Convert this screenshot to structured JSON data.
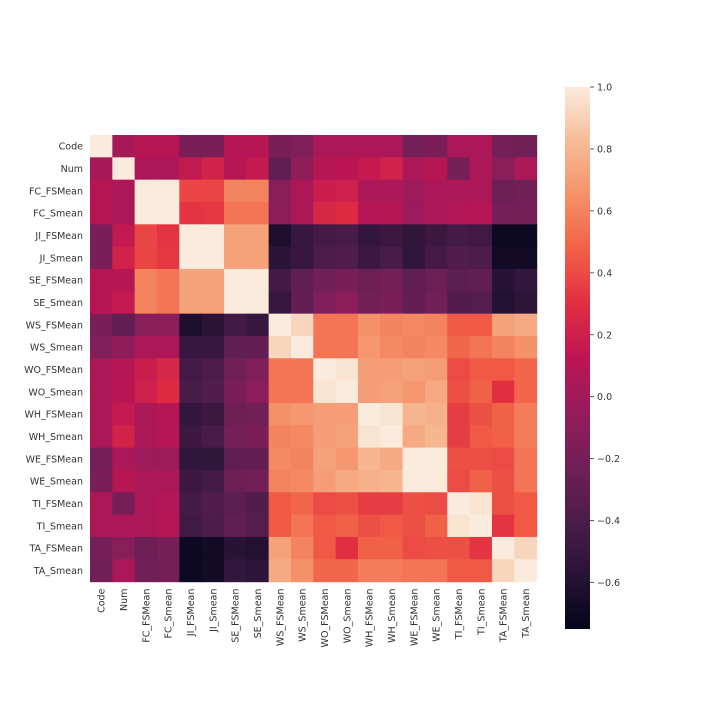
{
  "chart_data": {
    "type": "heatmap",
    "title": "",
    "labels": [
      "Code",
      "Num",
      "FC_FSMean",
      "FC_Smean",
      "JI_FSMean",
      "JI_Smean",
      "SE_FSMean",
      "SE_Smean",
      "WS_FSMean",
      "WS_Smean",
      "WO_FSMean",
      "WO_Smean",
      "WH_FSMean",
      "WH_Smean",
      "WE_FSMean",
      "WE_Smean",
      "TI_FSMean",
      "TI_Smean",
      "TA_FSMean",
      "TA_Smean"
    ],
    "matrix": [
      [
        1.0,
        0.02,
        0.1,
        0.1,
        -0.18,
        -0.18,
        0.1,
        0.1,
        -0.18,
        -0.15,
        0.05,
        0.05,
        0.05,
        0.05,
        -0.2,
        -0.18,
        0.05,
        0.05,
        -0.2,
        -0.22
      ],
      [
        0.02,
        1.0,
        0.05,
        0.05,
        0.15,
        0.22,
        0.1,
        0.16,
        -0.3,
        -0.08,
        0.1,
        0.12,
        0.16,
        0.22,
        0.05,
        0.1,
        -0.2,
        0.05,
        -0.12,
        0.05
      ],
      [
        0.1,
        0.05,
        1.0,
        1.0,
        0.38,
        0.38,
        0.6,
        0.6,
        -0.12,
        0.05,
        0.18,
        0.2,
        0.05,
        0.05,
        -0.02,
        0.05,
        0.05,
        0.05,
        -0.25,
        -0.22
      ],
      [
        0.1,
        0.05,
        1.0,
        1.0,
        0.32,
        0.33,
        0.55,
        0.55,
        -0.1,
        0.05,
        0.25,
        0.28,
        0.1,
        0.1,
        -0.02,
        0.05,
        0.08,
        0.1,
        -0.2,
        -0.2
      ],
      [
        -0.18,
        0.15,
        0.38,
        0.32,
        1.0,
        1.0,
        0.72,
        0.72,
        -0.62,
        -0.5,
        -0.44,
        -0.42,
        -0.52,
        -0.48,
        -0.53,
        -0.48,
        -0.44,
        -0.46,
        -0.7,
        -0.7
      ],
      [
        -0.18,
        0.22,
        0.38,
        0.33,
        1.0,
        1.0,
        0.72,
        0.72,
        -0.56,
        -0.5,
        -0.4,
        -0.38,
        -0.48,
        -0.42,
        -0.53,
        -0.44,
        -0.38,
        -0.4,
        -0.68,
        -0.68
      ],
      [
        0.1,
        0.1,
        0.6,
        0.55,
        0.72,
        0.72,
        1.0,
        1.0,
        -0.45,
        -0.3,
        -0.22,
        -0.18,
        -0.25,
        -0.2,
        -0.3,
        -0.25,
        -0.32,
        -0.3,
        -0.58,
        -0.52
      ],
      [
        0.1,
        0.16,
        0.6,
        0.55,
        0.72,
        0.72,
        1.0,
        1.0,
        -0.5,
        -0.28,
        -0.15,
        -0.1,
        -0.22,
        -0.18,
        -0.28,
        -0.22,
        -0.38,
        -0.36,
        -0.6,
        -0.55
      ],
      [
        -0.18,
        -0.3,
        -0.12,
        -0.1,
        -0.62,
        -0.56,
        -0.45,
        -0.5,
        1.0,
        0.92,
        0.55,
        0.55,
        0.65,
        0.6,
        0.62,
        0.6,
        0.45,
        0.45,
        0.72,
        0.75
      ],
      [
        -0.15,
        -0.08,
        0.05,
        0.05,
        -0.5,
        -0.5,
        -0.3,
        -0.28,
        0.92,
        1.0,
        0.55,
        0.55,
        0.68,
        0.62,
        0.6,
        0.62,
        0.5,
        0.55,
        0.6,
        0.65
      ],
      [
        0.05,
        0.1,
        0.18,
        0.25,
        -0.44,
        -0.4,
        -0.22,
        -0.15,
        0.55,
        0.55,
        1.0,
        0.97,
        0.7,
        0.7,
        0.72,
        0.7,
        0.4,
        0.45,
        0.45,
        0.5
      ],
      [
        0.05,
        0.12,
        0.2,
        0.28,
        -0.42,
        -0.38,
        -0.18,
        -0.1,
        0.55,
        0.55,
        0.97,
        1.0,
        0.7,
        0.72,
        0.68,
        0.75,
        0.42,
        0.48,
        0.3,
        0.5
      ],
      [
        0.05,
        0.16,
        0.05,
        0.1,
        -0.52,
        -0.48,
        -0.25,
        -0.22,
        0.65,
        0.68,
        0.7,
        0.7,
        1.0,
        0.97,
        0.8,
        0.78,
        0.35,
        0.42,
        0.48,
        0.58
      ],
      [
        0.05,
        0.22,
        0.05,
        0.1,
        -0.48,
        -0.42,
        -0.2,
        -0.18,
        0.6,
        0.62,
        0.7,
        0.72,
        0.97,
        1.0,
        0.75,
        0.8,
        0.35,
        0.45,
        0.48,
        0.58
      ],
      [
        -0.2,
        0.05,
        -0.02,
        -0.02,
        -0.53,
        -0.53,
        -0.3,
        -0.28,
        0.62,
        0.6,
        0.72,
        0.68,
        0.8,
        0.75,
        1.0,
        1.0,
        0.42,
        0.42,
        0.4,
        0.55
      ],
      [
        -0.18,
        0.1,
        0.05,
        0.05,
        -0.48,
        -0.44,
        -0.25,
        -0.22,
        0.6,
        0.62,
        0.7,
        0.75,
        0.78,
        0.8,
        1.0,
        1.0,
        0.4,
        0.48,
        0.42,
        0.55
      ],
      [
        0.05,
        -0.2,
        0.05,
        0.08,
        -0.44,
        -0.38,
        -0.32,
        -0.38,
        0.45,
        0.5,
        0.4,
        0.42,
        0.35,
        0.35,
        0.42,
        0.4,
        1.0,
        0.97,
        0.42,
        0.45
      ],
      [
        0.05,
        0.05,
        0.05,
        0.1,
        -0.46,
        -0.4,
        -0.3,
        -0.36,
        0.45,
        0.55,
        0.45,
        0.48,
        0.42,
        0.45,
        0.42,
        0.48,
        0.97,
        1.0,
        0.32,
        0.45
      ],
      [
        -0.2,
        -0.12,
        -0.25,
        -0.2,
        -0.7,
        -0.68,
        -0.58,
        -0.6,
        0.72,
        0.6,
        0.45,
        0.3,
        0.48,
        0.48,
        0.4,
        0.42,
        0.42,
        0.32,
        1.0,
        0.92
      ],
      [
        -0.22,
        0.05,
        -0.22,
        -0.2,
        -0.7,
        -0.68,
        -0.52,
        -0.55,
        0.75,
        0.65,
        0.5,
        0.5,
        0.58,
        0.58,
        0.55,
        0.55,
        0.45,
        0.45,
        0.92,
        1.0
      ]
    ],
    "colorbar": {
      "min": -0.75,
      "max": 1.0,
      "ticks": [
        "1.0",
        "0.8",
        "0.6",
        "0.4",
        "0.2",
        "0.0",
        "−0.2",
        "−0.4",
        "−0.6"
      ],
      "tick_values": [
        1.0,
        0.8,
        0.6,
        0.4,
        0.2,
        0.0,
        -0.2,
        -0.4,
        -0.6
      ],
      "colormap": "rocket"
    }
  }
}
